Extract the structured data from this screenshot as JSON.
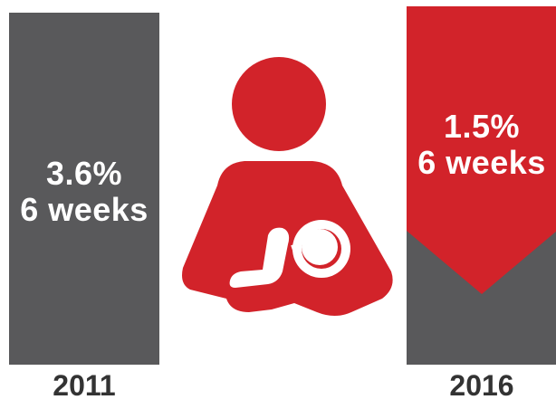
{
  "chart_data": {
    "type": "bar",
    "categories": [
      "2011",
      "2016"
    ],
    "series": [
      {
        "values": [
          3.6,
          1.5
        ],
        "labels": [
          "3.6%\n6 weeks",
          "1.5%\n6 weeks"
        ]
      }
    ],
    "colors": {
      "bar_2011": "#59595b",
      "bar_2016_top": "#d2232a",
      "bar_2016_bottom": "#59595b",
      "icon": "#d2232a",
      "year_text": "#333333"
    },
    "icon": "breastfeeding-mother-icon"
  }
}
